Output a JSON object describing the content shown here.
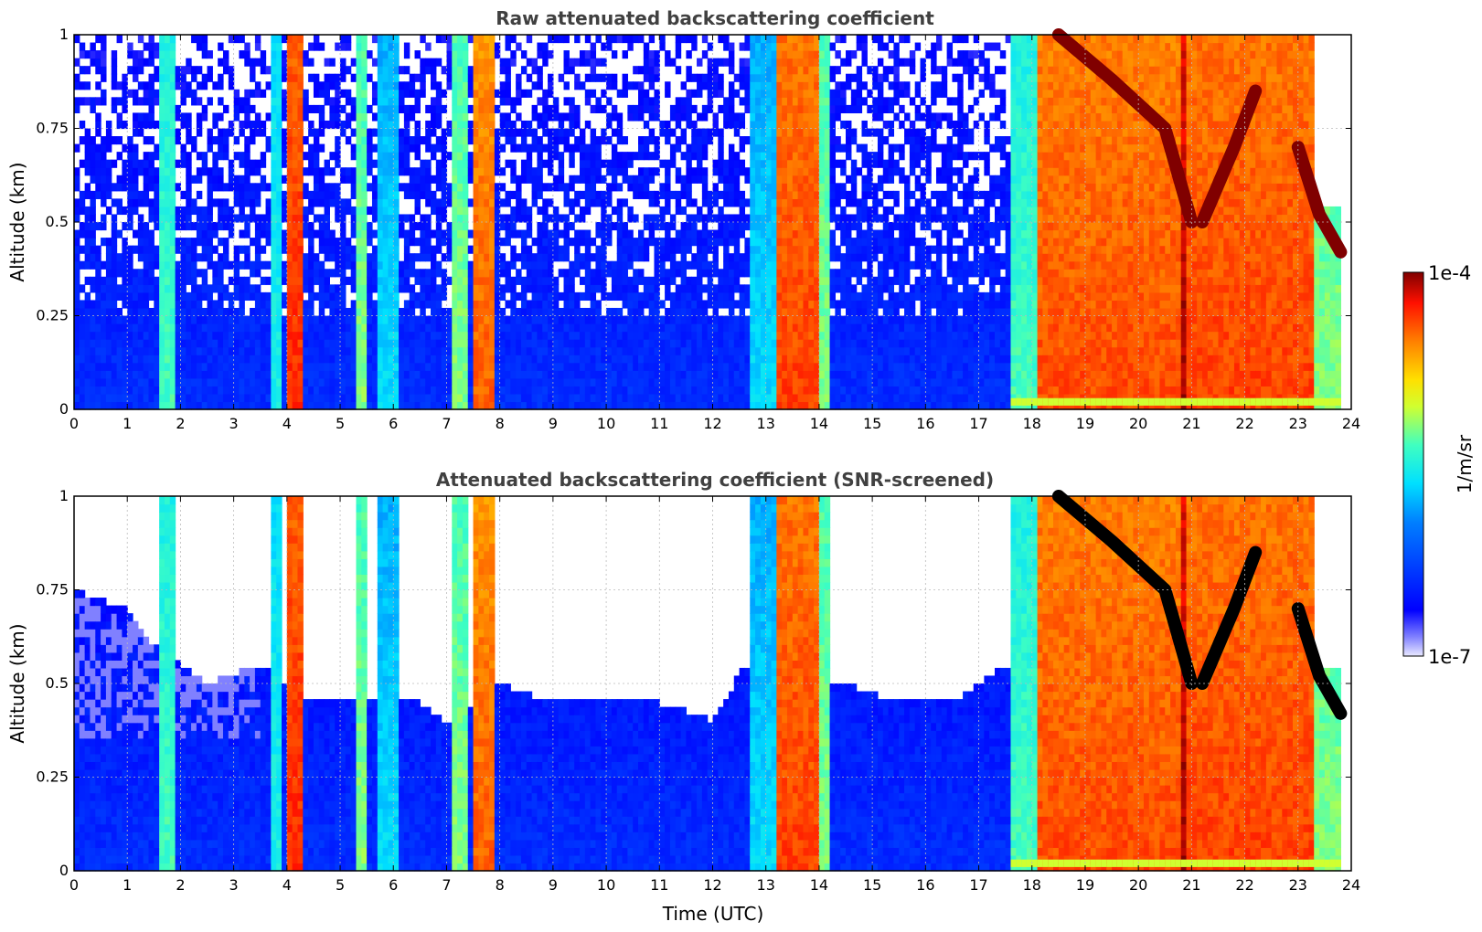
{
  "figure": {
    "xlabel": "Time (UTC)",
    "colorbar": {
      "label": "1/m/sr",
      "max_label": "1e-4",
      "min_label": "1e-7",
      "scale": "log"
    }
  },
  "chart_data": [
    {
      "type": "heatmap",
      "title": "Raw attenuated backscattering coefficient",
      "xlabel": "",
      "ylabel": "Altitude (km)",
      "xlim": [
        0,
        24
      ],
      "ylim": [
        0,
        1
      ],
      "xticks": [
        "0",
        "1",
        "2",
        "3",
        "4",
        "5",
        "6",
        "7",
        "8",
        "9",
        "10",
        "11",
        "12",
        "13",
        "14",
        "15",
        "16",
        "17",
        "18",
        "19",
        "20",
        "21",
        "22",
        "23",
        "24"
      ],
      "yticks": [
        "0",
        "0.25",
        "0.5",
        "0.75",
        "1"
      ],
      "grid": true,
      "colormap": "jet",
      "clim": [
        1e-07,
        0.0001
      ],
      "screened": false,
      "data_end_time": 23.8,
      "features": [
        {
          "t0": 1.6,
          "t1": 1.95,
          "level": 0.55,
          "top": 1.0
        },
        {
          "t0": 3.75,
          "t1": 3.95,
          "level": 0.5,
          "top": 1.0
        },
        {
          "t0": 4.0,
          "t1": 4.35,
          "level": 0.9,
          "top": 1.0
        },
        {
          "t0": 5.35,
          "t1": 5.55,
          "level": 0.6,
          "top": 1.0
        },
        {
          "t0": 5.75,
          "t1": 6.1,
          "level": 0.45,
          "top": 1.0
        },
        {
          "t0": 7.1,
          "t1": 7.45,
          "level": 0.6,
          "top": 1.0
        },
        {
          "t0": 7.5,
          "t1": 7.95,
          "level": 0.85,
          "top": 1.0
        },
        {
          "t0": 12.7,
          "t1": 13.2,
          "level": 0.45,
          "top": 1.0
        },
        {
          "t0": 13.25,
          "t1": 14.0,
          "level": 0.88,
          "top": 1.0
        },
        {
          "t0": 14.0,
          "t1": 14.2,
          "level": 0.6,
          "top": 1.0
        },
        {
          "t0": 17.6,
          "t1": 18.1,
          "level": 0.55,
          "top": 1.0
        },
        {
          "t0": 18.1,
          "t1": 20.8,
          "level": 0.87,
          "top": 1.0
        },
        {
          "t0": 20.8,
          "t1": 20.95,
          "level": 0.98,
          "top": 1.0
        },
        {
          "t0": 20.95,
          "t1": 23.3,
          "level": 0.88,
          "top": 1.0
        },
        {
          "t0": 23.3,
          "t1": 23.8,
          "level": 0.6,
          "top": 0.55
        }
      ],
      "layers": [
        {
          "name": "descending layer",
          "times": [
            18.5,
            19.5,
            20.5,
            21.0
          ],
          "altitudes": [
            1.0,
            0.88,
            0.75,
            0.5
          ],
          "level": 1.0
        },
        {
          "name": "rising layer",
          "times": [
            21.2,
            21.8,
            22.2
          ],
          "altitudes": [
            0.5,
            0.7,
            0.85
          ],
          "level": 1.0
        },
        {
          "name": "evening layer",
          "times": [
            23.0,
            23.4,
            23.8
          ],
          "altitudes": [
            0.7,
            0.52,
            0.42
          ],
          "level": 1.0
        }
      ]
    },
    {
      "type": "heatmap",
      "title": "Attenuated backscattering coefficient (SNR-screened)",
      "xlabel": "Time (UTC)",
      "ylabel": "Altitude (km)",
      "xlim": [
        0,
        24
      ],
      "ylim": [
        0,
        1
      ],
      "xticks": [
        "0",
        "1",
        "2",
        "3",
        "4",
        "5",
        "6",
        "7",
        "8",
        "9",
        "10",
        "11",
        "12",
        "13",
        "14",
        "15",
        "16",
        "17",
        "18",
        "19",
        "20",
        "21",
        "22",
        "23",
        "24"
      ],
      "yticks": [
        "0",
        "0.25",
        "0.5",
        "0.75",
        "1"
      ],
      "grid": true,
      "colormap": "jet",
      "clim": [
        1e-07,
        0.0001
      ],
      "screened": true,
      "data_end_time": 23.8,
      "screen_boundary": {
        "times": [
          0.0,
          1.0,
          1.5,
          2.5,
          3.5,
          4.5,
          5.0,
          6.5,
          7.0,
          8.0,
          9.0,
          10.0,
          11.0,
          12.0,
          12.6,
          14.5,
          15.5,
          16.5,
          17.0,
          17.5
        ],
        "altitudes": [
          0.75,
          0.7,
          0.6,
          0.5,
          0.55,
          0.45,
          0.45,
          0.45,
          0.4,
          0.5,
          0.45,
          0.45,
          0.45,
          0.4,
          0.55,
          0.5,
          0.45,
          0.45,
          0.5,
          0.55
        ]
      },
      "features": [
        {
          "t0": 1.6,
          "t1": 1.95,
          "level": 0.55,
          "top": 1.0
        },
        {
          "t0": 3.75,
          "t1": 3.95,
          "level": 0.5,
          "top": 1.0
        },
        {
          "t0": 4.0,
          "t1": 4.35,
          "level": 0.9,
          "top": 1.0
        },
        {
          "t0": 5.35,
          "t1": 5.55,
          "level": 0.6,
          "top": 1.0
        },
        {
          "t0": 5.75,
          "t1": 6.1,
          "level": 0.45,
          "top": 1.0
        },
        {
          "t0": 7.1,
          "t1": 7.45,
          "level": 0.6,
          "top": 1.0
        },
        {
          "t0": 7.5,
          "t1": 7.95,
          "level": 0.85,
          "top": 1.0
        },
        {
          "t0": 12.7,
          "t1": 13.2,
          "level": 0.45,
          "top": 1.0
        },
        {
          "t0": 13.25,
          "t1": 14.0,
          "level": 0.88,
          "top": 1.0
        },
        {
          "t0": 14.0,
          "t1": 14.2,
          "level": 0.6,
          "top": 1.0
        },
        {
          "t0": 17.6,
          "t1": 18.1,
          "level": 0.55,
          "top": 1.0
        },
        {
          "t0": 18.1,
          "t1": 20.8,
          "level": 0.87,
          "top": 1.0
        },
        {
          "t0": 20.8,
          "t1": 20.95,
          "level": 0.98,
          "top": 1.0
        },
        {
          "t0": 20.95,
          "t1": 23.3,
          "level": 0.88,
          "top": 1.0
        },
        {
          "t0": 23.3,
          "t1": 23.8,
          "level": 0.6,
          "top": 0.55
        }
      ],
      "layers": [
        {
          "name": "descending layer",
          "times": [
            18.5,
            19.5,
            20.5,
            21.0
          ],
          "altitudes": [
            1.0,
            0.88,
            0.75,
            0.5
          ],
          "level": 1.0
        },
        {
          "name": "rising layer",
          "times": [
            21.2,
            21.8,
            22.2
          ],
          "altitudes": [
            0.5,
            0.7,
            0.85
          ],
          "level": 1.0
        },
        {
          "name": "evening layer",
          "times": [
            23.0,
            23.4,
            23.8
          ],
          "altitudes": [
            0.7,
            0.52,
            0.42
          ],
          "level": 1.0
        }
      ]
    }
  ]
}
